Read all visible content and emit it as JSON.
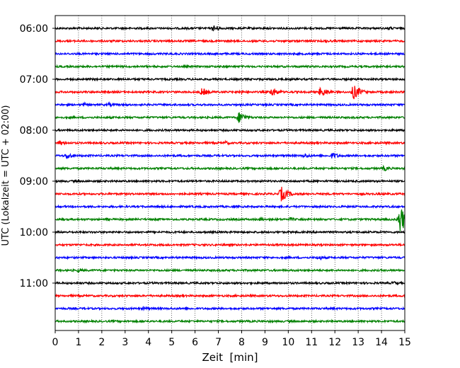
{
  "chart_data": {
    "type": "line",
    "title": "",
    "xlabel": "Zeit  [min]",
    "ylabel": "UTC (Lokalzeit = UTC + 02:00)",
    "xlim": [
      0,
      15
    ],
    "x_ticks": [
      "0",
      "1",
      "2",
      "3",
      "4",
      "5",
      "6",
      "7",
      "8",
      "9",
      "10",
      "11",
      "12",
      "13",
      "14",
      "15"
    ],
    "y_ticks": [
      "06:00",
      "07:00",
      "08:00",
      "09:00",
      "10:00",
      "11:00"
    ],
    "grid": "vertical dotted lines at each minute",
    "trace_interval_min": 15,
    "start_time": "06:00",
    "colors": [
      "#000000",
      "#ff0000",
      "#0000ff",
      "#008000"
    ],
    "series": [
      {
        "start": "06:00",
        "color": "#000000",
        "events": [
          {
            "t": 6.8,
            "amp": 5
          },
          {
            "t": 14.3,
            "amp": 3
          }
        ]
      },
      {
        "start": "06:15",
        "color": "#ff0000",
        "events": [
          {
            "t": 11.6,
            "amp": 3
          }
        ]
      },
      {
        "start": "06:30",
        "color": "#0000ff",
        "events": []
      },
      {
        "start": "06:45",
        "color": "#008000",
        "events": []
      },
      {
        "start": "07:00",
        "color": "#000000",
        "events": []
      },
      {
        "start": "07:15",
        "color": "#ff0000",
        "events": [
          {
            "t": 6.3,
            "amp": 6
          },
          {
            "t": 7.9,
            "amp": 3
          },
          {
            "t": 9.3,
            "amp": 7
          },
          {
            "t": 11.4,
            "amp": 8
          },
          {
            "t": 12.8,
            "amp": 11
          }
        ]
      },
      {
        "start": "07:30",
        "color": "#0000ff",
        "events": [
          {
            "t": 1.2,
            "amp": 3
          },
          {
            "t": 2.3,
            "amp": 3
          },
          {
            "t": 3.0,
            "amp": 2
          }
        ]
      },
      {
        "start": "07:45",
        "color": "#008000",
        "events": [
          {
            "t": 7.9,
            "amp": 9
          }
        ]
      },
      {
        "start": "08:00",
        "color": "#000000",
        "events": []
      },
      {
        "start": "08:15",
        "color": "#ff0000",
        "events": [
          {
            "t": 0.2,
            "amp": 4
          },
          {
            "t": 7.3,
            "amp": 3
          },
          {
            "t": 14.2,
            "amp": 2
          }
        ]
      },
      {
        "start": "08:30",
        "color": "#0000ff",
        "events": [
          {
            "t": 0.5,
            "amp": 5
          },
          {
            "t": 10.7,
            "amp": 4
          },
          {
            "t": 11.9,
            "amp": 5
          }
        ]
      },
      {
        "start": "08:45",
        "color": "#008000",
        "events": [
          {
            "t": 14.1,
            "amp": 4
          }
        ]
      },
      {
        "start": "09:00",
        "color": "#000000",
        "events": []
      },
      {
        "start": "09:15",
        "color": "#ff0000",
        "events": [
          {
            "t": 9.7,
            "amp": 11
          }
        ]
      },
      {
        "start": "09:30",
        "color": "#0000ff",
        "events": []
      },
      {
        "start": "09:45",
        "color": "#008000",
        "events": [
          {
            "t": 2.2,
            "amp": 2
          },
          {
            "t": 4.4,
            "amp": 2
          },
          {
            "t": 8.8,
            "amp": 3
          },
          {
            "t": 10.1,
            "amp": 3
          },
          {
            "t": 14.8,
            "amp": 20
          }
        ]
      },
      {
        "start": "10:00",
        "color": "#000000",
        "events": []
      },
      {
        "start": "10:15",
        "color": "#ff0000",
        "events": []
      },
      {
        "start": "10:30",
        "color": "#0000ff",
        "events": [
          {
            "t": 11.3,
            "amp": 4
          }
        ]
      },
      {
        "start": "10:45",
        "color": "#008000",
        "events": [
          {
            "t": 1.0,
            "amp": 3
          }
        ]
      },
      {
        "start": "11:00",
        "color": "#000000",
        "events": [
          {
            "t": 14.5,
            "amp": 3
          }
        ]
      },
      {
        "start": "11:15",
        "color": "#ff0000",
        "events": []
      },
      {
        "start": "11:30",
        "color": "#0000ff",
        "events": [
          {
            "t": 3.8,
            "amp": 3
          }
        ]
      },
      {
        "start": "11:45",
        "color": "#008000",
        "events": []
      }
    ]
  }
}
